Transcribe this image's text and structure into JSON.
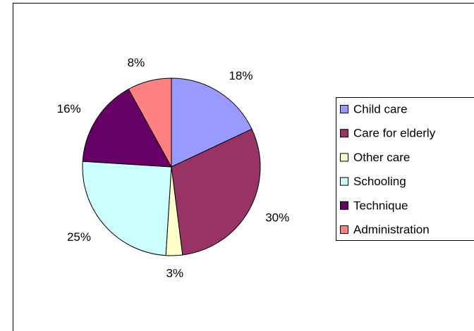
{
  "chart_data": {
    "type": "pie",
    "categories": [
      "Child care",
      "Care for elderly",
      "Other care",
      "Schooling",
      "Technique",
      "Administration"
    ],
    "values": [
      18,
      30,
      3,
      25,
      16,
      8
    ],
    "value_labels": [
      "18%",
      "30%",
      "3%",
      "25%",
      "16%",
      "8%"
    ],
    "colors": [
      "#9999ff",
      "#993366",
      "#ffffcc",
      "#ccffff",
      "#660066",
      "#ff8080"
    ],
    "legend": "right"
  }
}
